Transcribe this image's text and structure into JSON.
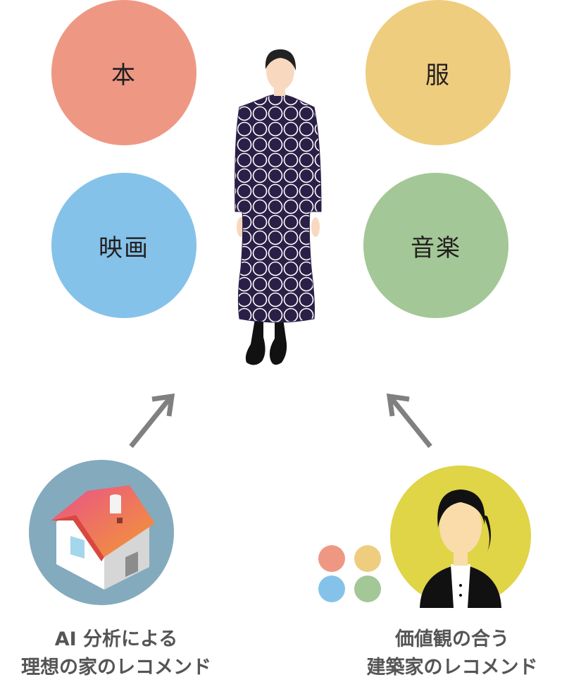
{
  "categories": [
    {
      "key": "book",
      "label": "本",
      "color": "#ee9884"
    },
    {
      "key": "clothes",
      "label": "服",
      "color": "#eecd7f"
    },
    {
      "key": "movie",
      "label": "映画",
      "color": "#85c2e9"
    },
    {
      "key": "music",
      "label": "音楽",
      "color": "#a3c796"
    }
  ],
  "captions": {
    "left_line1": "AI 分析による",
    "left_line2": "理想の家のレコメンド",
    "right_line1": "価値観の合う",
    "right_line2": "建築家のレコメンド"
  },
  "colors": {
    "arrow": "#808080",
    "house_bg": "#84aabd",
    "architect_bg": "#e0d447",
    "dress": "#2a2047",
    "skin": "#f8d9c0",
    "architect_skin": "#f9dcaa",
    "small_dots": [
      "#ee9884",
      "#eecd7f",
      "#85c2e9",
      "#a3c796"
    ]
  },
  "icons": {
    "person": "woman-in-dotted-dress-icon",
    "house": "house-icon",
    "architect": "architect-avatar-icon",
    "arrow_left": "arrow-up-right-icon",
    "arrow_right": "arrow-up-left-icon"
  }
}
